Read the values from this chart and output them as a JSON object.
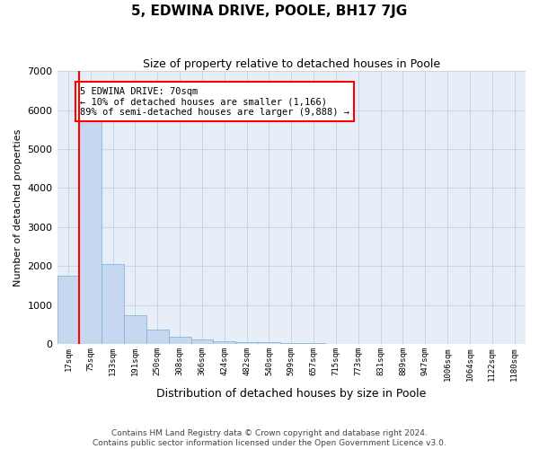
{
  "title": "5, EDWINA DRIVE, POOLE, BH17 7JG",
  "subtitle": "Size of property relative to detached houses in Poole",
  "xlabel": "Distribution of detached houses by size in Poole",
  "ylabel": "Number of detached properties",
  "bin_labels": [
    "17sqm",
    "75sqm",
    "133sqm",
    "191sqm",
    "250sqm",
    "308sqm",
    "366sqm",
    "424sqm",
    "482sqm",
    "540sqm",
    "599sqm",
    "657sqm",
    "715sqm",
    "773sqm",
    "831sqm",
    "889sqm",
    "947sqm",
    "1006sqm",
    "1064sqm",
    "1122sqm",
    "1180sqm"
  ],
  "bar_heights": [
    1750,
    5750,
    2050,
    750,
    380,
    190,
    115,
    75,
    55,
    45,
    35,
    20,
    15,
    10,
    5,
    5,
    3,
    2,
    1,
    1,
    0
  ],
  "bar_color": "#c5d8f0",
  "bar_edgecolor": "#7aadd4",
  "grid_color": "#c8d4e8",
  "background_color": "#e8eef8",
  "red_line_x": 0.5,
  "annotation_text": "5 EDWINA DRIVE: 70sqm\n← 10% of detached houses are smaller (1,166)\n89% of semi-detached houses are larger (9,888) →",
  "annotation_box_color": "white",
  "annotation_box_edgecolor": "red",
  "footer_line1": "Contains HM Land Registry data © Crown copyright and database right 2024.",
  "footer_line2": "Contains public sector information licensed under the Open Government Licence v3.0.",
  "ylim": [
    0,
    7000
  ],
  "yticks": [
    0,
    1000,
    2000,
    3000,
    4000,
    5000,
    6000,
    7000
  ]
}
